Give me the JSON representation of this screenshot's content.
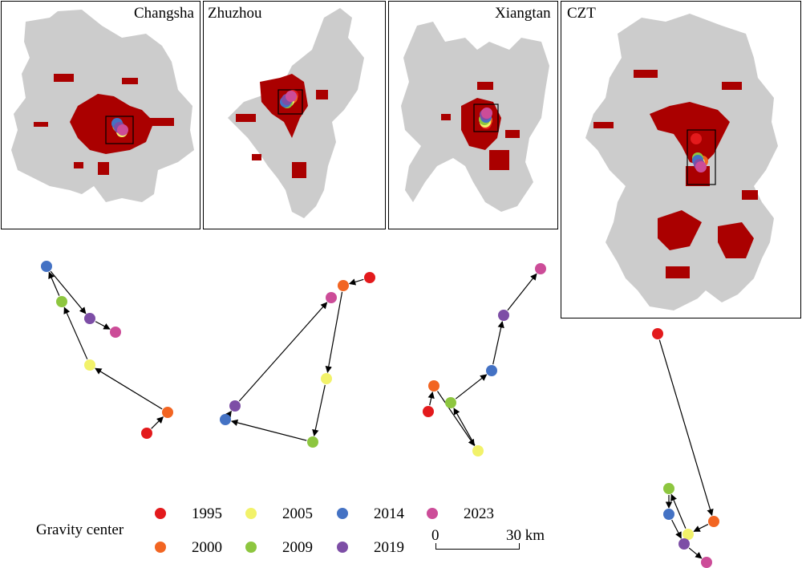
{
  "panels": [
    {
      "key": "changsha",
      "title": "Changsha"
    },
    {
      "key": "zhuzhou",
      "title": "Zhuzhou"
    },
    {
      "key": "xiangtan",
      "title": "Xiangtan"
    },
    {
      "key": "czt",
      "title": "CZT"
    }
  ],
  "legend": {
    "title": "Gravity center",
    "items": [
      {
        "year": "1995",
        "color": "#e31a1c"
      },
      {
        "year": "2000",
        "color": "#f26522"
      },
      {
        "year": "2005",
        "color": "#f2f26a"
      },
      {
        "year": "2009",
        "color": "#8dc63f"
      },
      {
        "year": "2014",
        "color": "#4472c4"
      },
      {
        "year": "2019",
        "color": "#7d4ea6"
      },
      {
        "year": "2023",
        "color": "#cc4c98"
      }
    ]
  },
  "scale_bar": {
    "min_label": "0",
    "max_label": "30 km"
  },
  "colors": {
    "land": "#cccccc",
    "urban": "#aa0000",
    "frame": "#000000",
    "arrow": "#000000"
  }
}
